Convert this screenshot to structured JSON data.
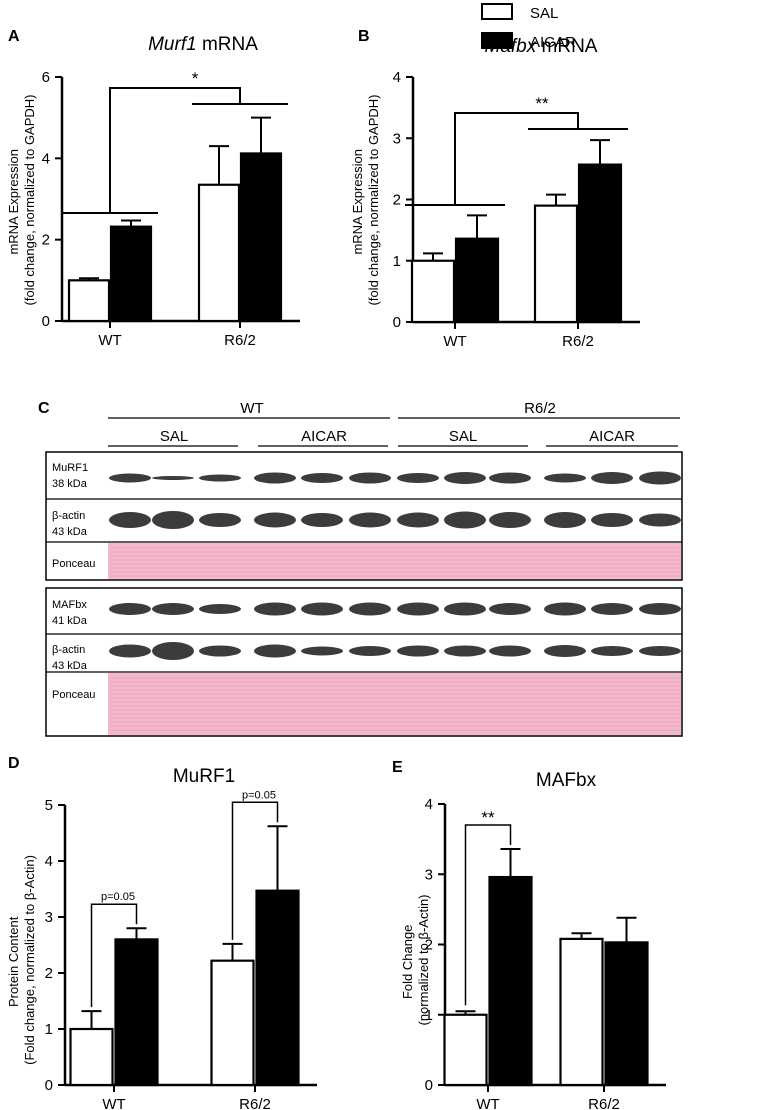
{
  "legend": {
    "items": [
      {
        "label": "SAL",
        "fill": "#ffffff"
      },
      {
        "label": "AICAR",
        "fill": "#000000"
      }
    ]
  },
  "chart_data": [
    {
      "panel": "A",
      "type": "bar",
      "title_italic": "Murf1",
      "title_rest": " mRNA",
      "ylabel_lines": [
        "mRNA Expression",
        "(fold change, normalized to GAPDH)"
      ],
      "categories": [
        "WT",
        "R6/2"
      ],
      "ylim": [
        0,
        6
      ],
      "yticks": [
        "0",
        "2",
        "4",
        "6"
      ],
      "series": [
        {
          "name": "SAL",
          "values": [
            1.0,
            3.35
          ],
          "errors": [
            0.05,
            0.95
          ]
        },
        {
          "name": "AICAR",
          "values": [
            2.32,
            4.12
          ],
          "errors": [
            0.15,
            0.88
          ]
        }
      ],
      "annotation": "*"
    },
    {
      "panel": "B",
      "type": "bar",
      "title_italic": "Mafbx",
      "title_rest": " mRNA",
      "ylabel_lines": [
        "mRNA Expression",
        "(fold change, normalized to GAPDH)"
      ],
      "categories": [
        "WT",
        "R6/2"
      ],
      "ylim": [
        0,
        4
      ],
      "yticks": [
        "0",
        "1",
        "2",
        "3",
        "4"
      ],
      "series": [
        {
          "name": "SAL",
          "values": [
            1.0,
            1.9
          ],
          "errors": [
            0.12,
            0.18
          ]
        },
        {
          "name": "AICAR",
          "values": [
            1.36,
            2.57
          ],
          "errors": [
            0.38,
            0.4
          ]
        }
      ],
      "annotation": "**"
    },
    {
      "panel": "D",
      "type": "bar",
      "title_italic": "",
      "title_rest": "MuRF1",
      "ylabel_lines": [
        "Protein Content",
        "(Fold change, normalized to β-Actin)"
      ],
      "categories": [
        "WT",
        "R6/2"
      ],
      "ylim": [
        0,
        5
      ],
      "yticks": [
        "0",
        "1",
        "2",
        "3",
        "4",
        "5"
      ],
      "series": [
        {
          "name": "SAL",
          "values": [
            1.0,
            2.22
          ],
          "errors": [
            0.32,
            0.3
          ]
        },
        {
          "name": "AICAR",
          "values": [
            2.6,
            3.47
          ],
          "errors": [
            0.2,
            1.15
          ]
        }
      ],
      "annotations": [
        "p=0.05",
        "p=0.05"
      ]
    },
    {
      "panel": "E",
      "type": "bar",
      "title_italic": "",
      "title_rest": "MAFbx",
      "ylabel_lines": [
        "Fold Change",
        "(normalized to β-Actin)"
      ],
      "categories": [
        "WT",
        "R6/2"
      ],
      "ylim": [
        0,
        4
      ],
      "yticks": [
        "0",
        "1",
        "2",
        "3",
        "4"
      ],
      "series": [
        {
          "name": "SAL",
          "values": [
            1.0,
            2.08
          ],
          "errors": [
            0.05,
            0.08
          ]
        },
        {
          "name": "AICAR",
          "values": [
            2.96,
            2.03
          ],
          "errors": [
            0.4,
            0.35
          ]
        }
      ],
      "annotations": [
        "**"
      ]
    }
  ],
  "panel_c": {
    "panel_letter": "C",
    "groups": [
      "WT",
      "R6/2"
    ],
    "subgroups": [
      "SAL",
      "AICAR",
      "SAL",
      "AICAR"
    ],
    "blot1_rows": [
      {
        "label1": "MuRF1",
        "label2": "38 kDa"
      },
      {
        "label1": "β-actin",
        "label2": "43 kDa"
      },
      {
        "label1": "Ponceau",
        "label2": ""
      }
    ],
    "blot2_rows": [
      {
        "label1": "MAFbx",
        "label2": "41 kDa"
      },
      {
        "label1": "β-actin",
        "label2": "43 kDa"
      },
      {
        "label1": "Ponceau",
        "label2": ""
      }
    ],
    "ponceau_color": "#f2b8cc"
  },
  "panel_letters": [
    "A",
    "B",
    "C",
    "D",
    "E"
  ]
}
